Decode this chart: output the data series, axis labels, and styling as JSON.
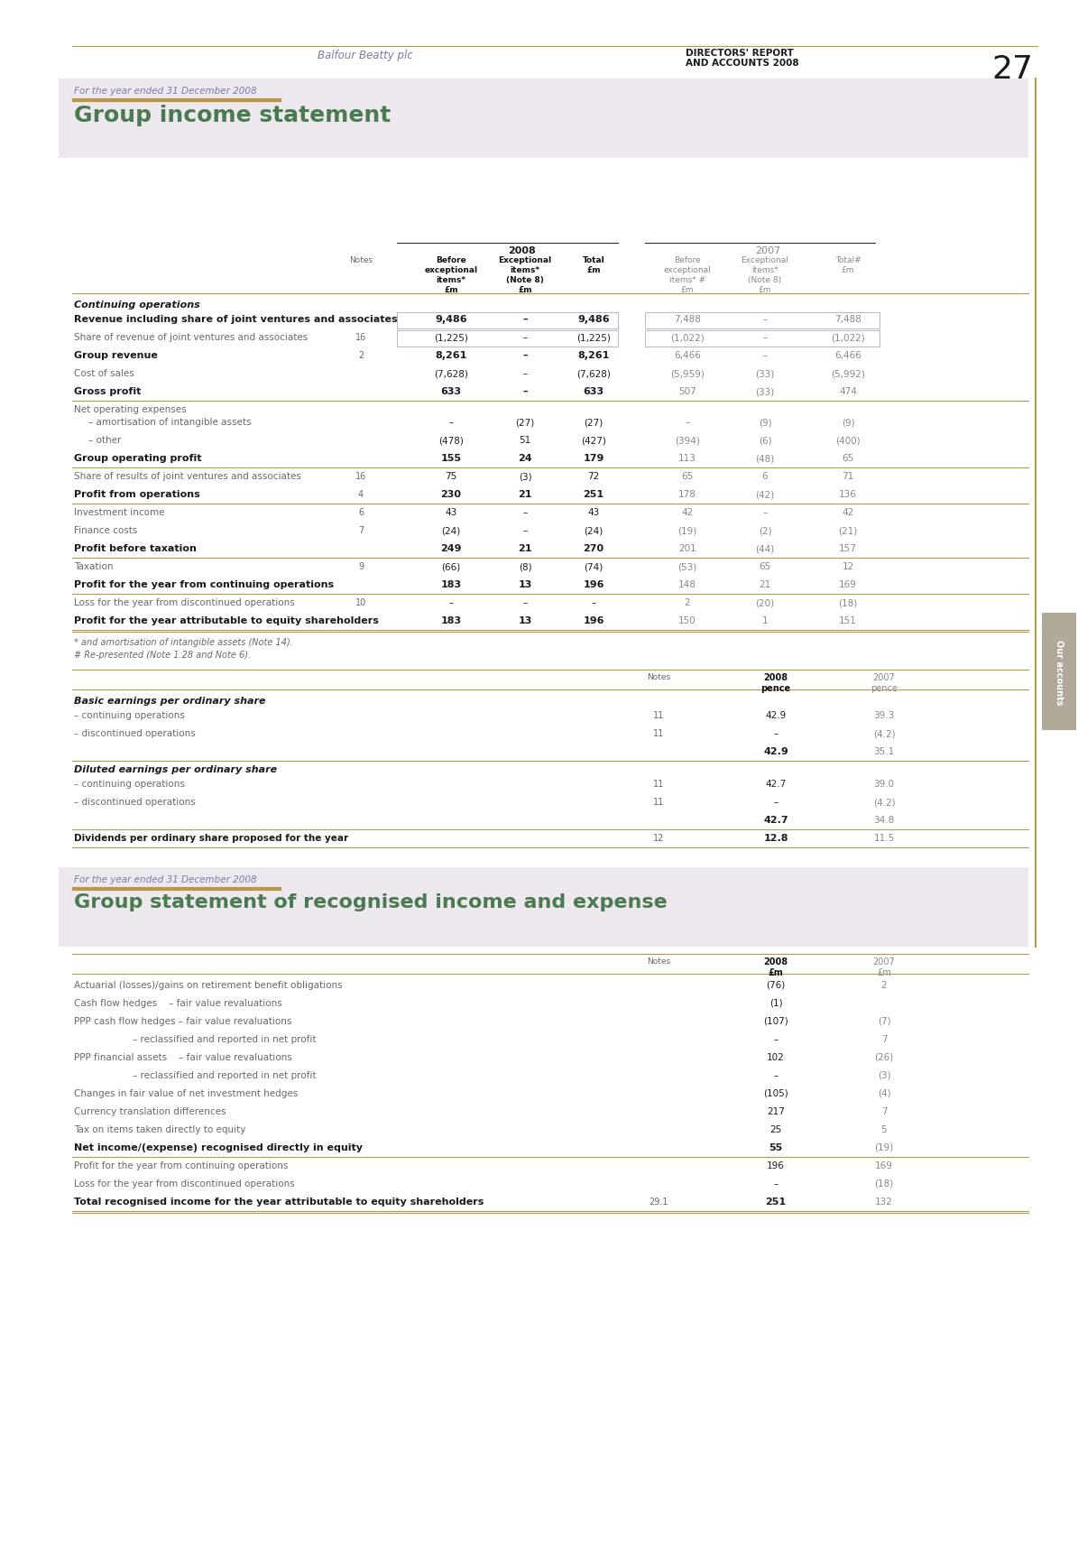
{
  "page_number": "27",
  "header_left": "Balfour Beatty plc",
  "header_right_line1": "DIRECTORS' REPORT",
  "header_right_line2": "AND ACCOUNTS 2008",
  "section1_subtitle": "For the year ended 31 December 2008",
  "section1_title": "Group income statement",
  "section2_subtitle": "For the year ended 31 December 2008",
  "section2_title": "Group statement of recognised income and expense",
  "income_rows": [
    {
      "label": "Continuing operations",
      "bold": true,
      "type": "section_header",
      "indent": 0,
      "note": "",
      "v1": "",
      "v2": "",
      "v3": "",
      "v4": "",
      "v5": "",
      "v6": ""
    },
    {
      "label": "Revenue including share of joint ventures and associates",
      "bold": true,
      "type": "data_boxed",
      "indent": 0,
      "note": "",
      "v1": "9,486",
      "v2": "–",
      "v3": "9,486",
      "v4": "7,488",
      "v5": "–",
      "v6": "7,488"
    },
    {
      "label": "Share of revenue of joint ventures and associates",
      "bold": false,
      "type": "data_boxed",
      "indent": 0,
      "note": "16",
      "v1": "(1,225)",
      "v2": "–",
      "v3": "(1,225)",
      "v4": "(1,022)",
      "v5": "–",
      "v6": "(1,022)"
    },
    {
      "label": "Group revenue",
      "bold": true,
      "type": "data",
      "indent": 0,
      "note": "2",
      "v1": "8,261",
      "v2": "–",
      "v3": "8,261",
      "v4": "6,466",
      "v5": "–",
      "v6": "6,466"
    },
    {
      "label": "Cost of sales",
      "bold": false,
      "type": "data",
      "indent": 0,
      "note": "",
      "v1": "(7,628)",
      "v2": "–",
      "v3": "(7,628)",
      "v4": "(5,959)",
      "v5": "(33)",
      "v6": "(5,992)"
    },
    {
      "label": "Gross profit",
      "bold": true,
      "type": "data_line",
      "indent": 0,
      "note": "",
      "v1": "633",
      "v2": "–",
      "v3": "633",
      "v4": "507",
      "v5": "(33)",
      "v6": "474"
    },
    {
      "label": "Net operating expenses",
      "bold": false,
      "type": "label_only",
      "indent": 0,
      "note": "",
      "v1": "",
      "v2": "",
      "v3": "",
      "v4": "",
      "v5": "",
      "v6": ""
    },
    {
      "label": "– amortisation of intangible assets",
      "bold": false,
      "type": "data",
      "indent": 1,
      "note": "",
      "v1": "–",
      "v2": "(27)",
      "v3": "(27)",
      "v4": "–",
      "v5": "(9)",
      "v6": "(9)"
    },
    {
      "label": "– other",
      "bold": false,
      "type": "data",
      "indent": 1,
      "note": "",
      "v1": "(478)",
      "v2": "51",
      "v3": "(427)",
      "v4": "(394)",
      "v5": "(6)",
      "v6": "(400)"
    },
    {
      "label": "Group operating profit",
      "bold": true,
      "type": "data_line",
      "indent": 0,
      "note": "",
      "v1": "155",
      "v2": "24",
      "v3": "179",
      "v4": "113",
      "v5": "(48)",
      "v6": "65"
    },
    {
      "label": "Share of results of joint ventures and associates",
      "bold": false,
      "type": "data",
      "indent": 0,
      "note": "16",
      "v1": "75",
      "v2": "(3)",
      "v3": "72",
      "v4": "65",
      "v5": "6",
      "v6": "71"
    },
    {
      "label": "Profit from operations",
      "bold": true,
      "type": "data_line",
      "indent": 0,
      "note": "4",
      "v1": "230",
      "v2": "21",
      "v3": "251",
      "v4": "178",
      "v5": "(42)",
      "v6": "136"
    },
    {
      "label": "Investment income",
      "bold": false,
      "type": "data",
      "indent": 0,
      "note": "6",
      "v1": "43",
      "v2": "–",
      "v3": "43",
      "v4": "42",
      "v5": "–",
      "v6": "42"
    },
    {
      "label": "Finance costs",
      "bold": false,
      "type": "data",
      "indent": 0,
      "note": "7",
      "v1": "(24)",
      "v2": "–",
      "v3": "(24)",
      "v4": "(19)",
      "v5": "(2)",
      "v6": "(21)"
    },
    {
      "label": "Profit before taxation",
      "bold": true,
      "type": "data_line",
      "indent": 0,
      "note": "",
      "v1": "249",
      "v2": "21",
      "v3": "270",
      "v4": "201",
      "v5": "(44)",
      "v6": "157"
    },
    {
      "label": "Taxation",
      "bold": false,
      "type": "data",
      "indent": 0,
      "note": "9",
      "v1": "(66)",
      "v2": "(8)",
      "v3": "(74)",
      "v4": "(53)",
      "v5": "65",
      "v6": "12"
    },
    {
      "label": "Profit for the year from continuing operations",
      "bold": true,
      "type": "data_line",
      "indent": 0,
      "note": "",
      "v1": "183",
      "v2": "13",
      "v3": "196",
      "v4": "148",
      "v5": "21",
      "v6": "169"
    },
    {
      "label": "Loss for the year from discontinued operations",
      "bold": false,
      "type": "data",
      "indent": 0,
      "note": "10",
      "v1": "–",
      "v2": "–",
      "v3": "–",
      "v4": "2",
      "v5": "(20)",
      "v6": "(18)"
    },
    {
      "label": "Profit for the year attributable to equity shareholders",
      "bold": true,
      "type": "data_dline",
      "indent": 0,
      "note": "",
      "v1": "183",
      "v2": "13",
      "v3": "196",
      "v4": "150",
      "v5": "1",
      "v6": "151"
    }
  ],
  "footnote1": "* and amortisation of intangible assets (Note 14).",
  "footnote2": "# Re-presented (Note 1.28 and Note 6).",
  "eps_rows": [
    {
      "label": "Basic earnings per ordinary share",
      "bold": true,
      "type": "section_header",
      "note": "",
      "v1": "",
      "v2": ""
    },
    {
      "label": "– continuing operations",
      "bold": false,
      "type": "data",
      "note": "11",
      "v1": "42.9",
      "v2": "39.3"
    },
    {
      "label": "– discontinued operations",
      "bold": false,
      "type": "data",
      "note": "11",
      "v1": "–",
      "v2": "(4.2)"
    },
    {
      "label": "",
      "bold": false,
      "type": "total_line",
      "note": "",
      "v1": "42.9",
      "v2": "35.1"
    },
    {
      "label": "Diluted earnings per ordinary share",
      "bold": true,
      "type": "section_header",
      "note": "",
      "v1": "",
      "v2": ""
    },
    {
      "label": "– continuing operations",
      "bold": false,
      "type": "data",
      "note": "11",
      "v1": "42.7",
      "v2": "39.0"
    },
    {
      "label": "– discontinued operations",
      "bold": false,
      "type": "data",
      "note": "11",
      "v1": "–",
      "v2": "(4.2)"
    },
    {
      "label": "",
      "bold": false,
      "type": "total_line",
      "note": "",
      "v1": "42.7",
      "v2": "34.8"
    },
    {
      "label": "Dividends per ordinary share proposed for the year",
      "bold": true,
      "type": "data_line",
      "note": "12",
      "v1": "12.8",
      "v2": "11.5"
    }
  ],
  "stmt2_rows": [
    {
      "label": "Actuarial (losses)/gains on retirement benefit obligations",
      "bold": false,
      "type": "data",
      "note": "",
      "v1": "(76)",
      "v2": "2"
    },
    {
      "label": "Cash flow hedges    – fair value revaluations",
      "bold": false,
      "type": "data",
      "note": "",
      "v1": "(1)",
      "v2": ""
    },
    {
      "label": "PPP cash flow hedges – fair value revaluations",
      "bold": false,
      "type": "data",
      "note": "",
      "v1": "(107)",
      "v2": "(7)"
    },
    {
      "label": "                    – reclassified and reported in net profit",
      "bold": false,
      "type": "data",
      "note": "",
      "v1": "–",
      "v2": "7"
    },
    {
      "label": "PPP financial assets    – fair value revaluations",
      "bold": false,
      "type": "data",
      "note": "",
      "v1": "102",
      "v2": "(26)"
    },
    {
      "label": "                    – reclassified and reported in net profit",
      "bold": false,
      "type": "data",
      "note": "",
      "v1": "–",
      "v2": "(3)"
    },
    {
      "label": "Changes in fair value of net investment hedges",
      "bold": false,
      "type": "data",
      "note": "",
      "v1": "(105)",
      "v2": "(4)"
    },
    {
      "label": "Currency translation differences",
      "bold": false,
      "type": "data",
      "note": "",
      "v1": "217",
      "v2": "7"
    },
    {
      "label": "Tax on items taken directly to equity",
      "bold": false,
      "type": "data",
      "note": "",
      "v1": "25",
      "v2": "5"
    },
    {
      "label": "Net income/(expense) recognised directly in equity",
      "bold": true,
      "type": "data_line",
      "note": "",
      "v1": "55",
      "v2": "(19)"
    },
    {
      "label": "Profit for the year from continuing operations",
      "bold": false,
      "type": "data",
      "note": "",
      "v1": "196",
      "v2": "169"
    },
    {
      "label": "Loss for the year from discontinued operations",
      "bold": false,
      "type": "data",
      "note": "",
      "v1": "–",
      "v2": "(18)"
    },
    {
      "label": "Total recognised income for the year attributable to equity shareholders",
      "bold": true,
      "type": "data_dline",
      "note": "29.1",
      "v1": "251",
      "v2": "132"
    }
  ]
}
